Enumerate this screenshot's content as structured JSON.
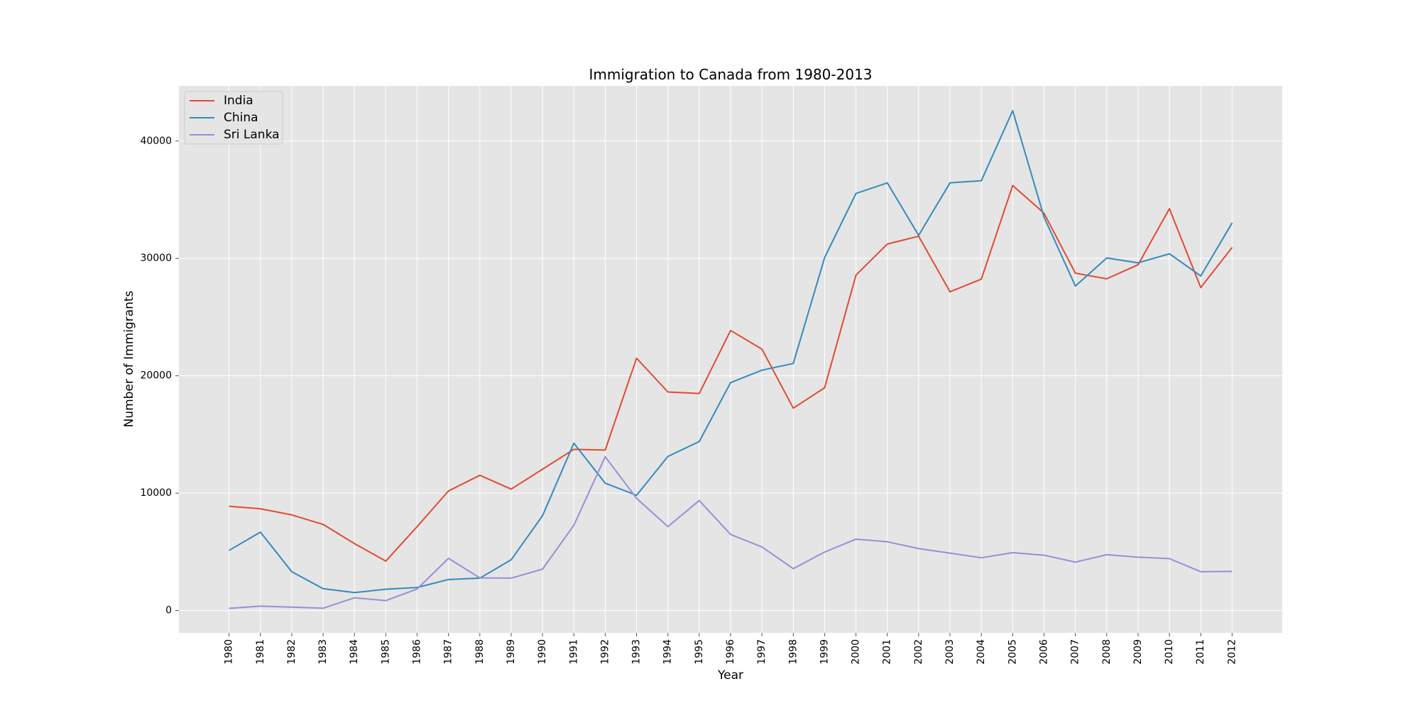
{
  "chart_data": {
    "type": "line",
    "title": "Immigration to Canada from 1980-2013",
    "xlabel": "Year",
    "ylabel": "Number of Immigrants",
    "x": [
      1980,
      1981,
      1982,
      1983,
      1984,
      1985,
      1986,
      1987,
      1988,
      1989,
      1990,
      1991,
      1992,
      1993,
      1994,
      1995,
      1996,
      1997,
      1998,
      1999,
      2000,
      2001,
      2002,
      2003,
      2004,
      2005,
      2006,
      2007,
      2008,
      2009,
      2010,
      2011,
      2012
    ],
    "xlim": [
      1978.4,
      2013.6
    ],
    "ylim": [
      -1900,
      44700
    ],
    "yticks": [
      0,
      10000,
      20000,
      30000,
      40000
    ],
    "grid": true,
    "legend_position": "top-left",
    "series": [
      {
        "name": "India",
        "color": "#E24A33",
        "values": [
          8880,
          8670,
          8147,
          7338,
          5704,
          4211,
          7150,
          10189,
          11522,
          10343,
          12041,
          13734,
          13673,
          21496,
          18620,
          18489,
          23859,
          22268,
          17241,
          18974,
          28572,
          31223,
          31889,
          27155,
          28235,
          36210,
          33848,
          28742,
          28261,
          29456,
          34235,
          27509,
          30933
        ]
      },
      {
        "name": "China",
        "color": "#348ABD",
        "values": [
          5123,
          6682,
          3308,
          1863,
          1527,
          1816,
          1960,
          2643,
          2758,
          4323,
          8076,
          14255,
          10846,
          9817,
          13128,
          14398,
          19415,
          20475,
          21049,
          30069,
          35529,
          36434,
          31961,
          36439,
          36619,
          42584,
          33518,
          27642,
          30037,
          29622,
          30391,
          28502,
          33024
        ]
      },
      {
        "name": "Sri Lanka",
        "color": "#988ED5",
        "values": [
          185,
          371,
          290,
          197,
          1086,
          845,
          1838,
          4447,
          2779,
          2758,
          3525,
          7266,
          13102,
          9563,
          7150,
          9368,
          6484,
          5415,
          3566,
          4982,
          6081,
          5861,
          5279,
          4892,
          4495,
          4930,
          4714,
          4123,
          4756,
          4547,
          4422,
          3309,
          3338
        ]
      }
    ]
  }
}
